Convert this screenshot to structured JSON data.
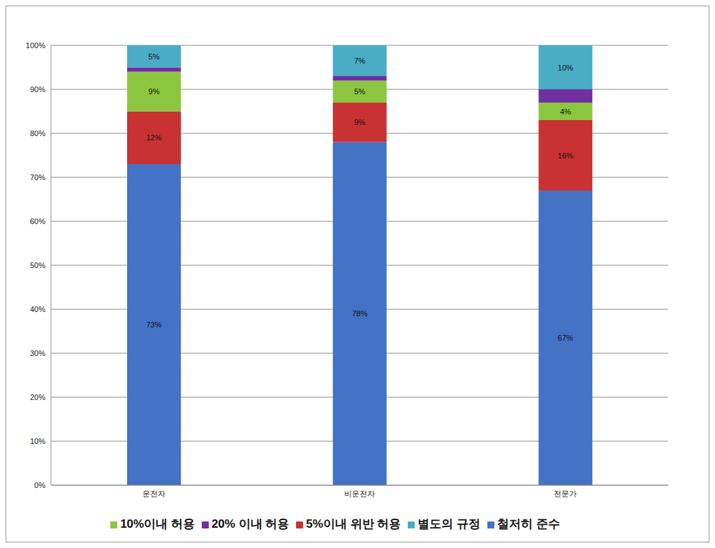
{
  "chart_data": {
    "type": "bar",
    "stacked": true,
    "grid": true,
    "legend": "bottom",
    "data_labels": true,
    "categories": [
      "운전자",
      "비운전자",
      "전문가"
    ],
    "ylim": [
      0,
      100
    ],
    "yticks": [
      {
        "value": 0,
        "label": "0%"
      },
      {
        "value": 10,
        "label": "10%"
      },
      {
        "value": 20,
        "label": "20%"
      },
      {
        "value": 30,
        "label": "30%"
      },
      {
        "value": 40,
        "label": "40%"
      },
      {
        "value": 50,
        "label": "50%"
      },
      {
        "value": 60,
        "label": "60%"
      },
      {
        "value": 70,
        "label": "70%"
      },
      {
        "value": 80,
        "label": "80%"
      },
      {
        "value": 90,
        "label": "90%"
      },
      {
        "value": 100,
        "label": "100%"
      }
    ],
    "series": [
      {
        "name": "철저히 준수",
        "color": "#4472c4",
        "values": [
          73,
          78,
          67
        ],
        "value_labels": [
          "73%",
          "78%",
          "67%"
        ],
        "data_labels": true
      },
      {
        "name": "5%이내 위반 허용",
        "color": "#c83232",
        "values": [
          12,
          9,
          16
        ],
        "value_labels": [
          "12%",
          "9%",
          "16%"
        ],
        "data_labels": true
      },
      {
        "name": "10%이내 허용",
        "color": "#8cc63f",
        "values": [
          9,
          5,
          4
        ],
        "value_labels": [
          "9%",
          "5%",
          "4%"
        ],
        "data_labels": true
      },
      {
        "name": "20% 이내 허용",
        "color": "#7030a0",
        "values": [
          1,
          1,
          3
        ],
        "data_labels": false
      },
      {
        "name": "별도의 규정",
        "color": "#4bacc6",
        "values": [
          5,
          7,
          10
        ],
        "value_labels": [
          "5%",
          "7%",
          "10%"
        ],
        "data_labels": true
      }
    ]
  }
}
